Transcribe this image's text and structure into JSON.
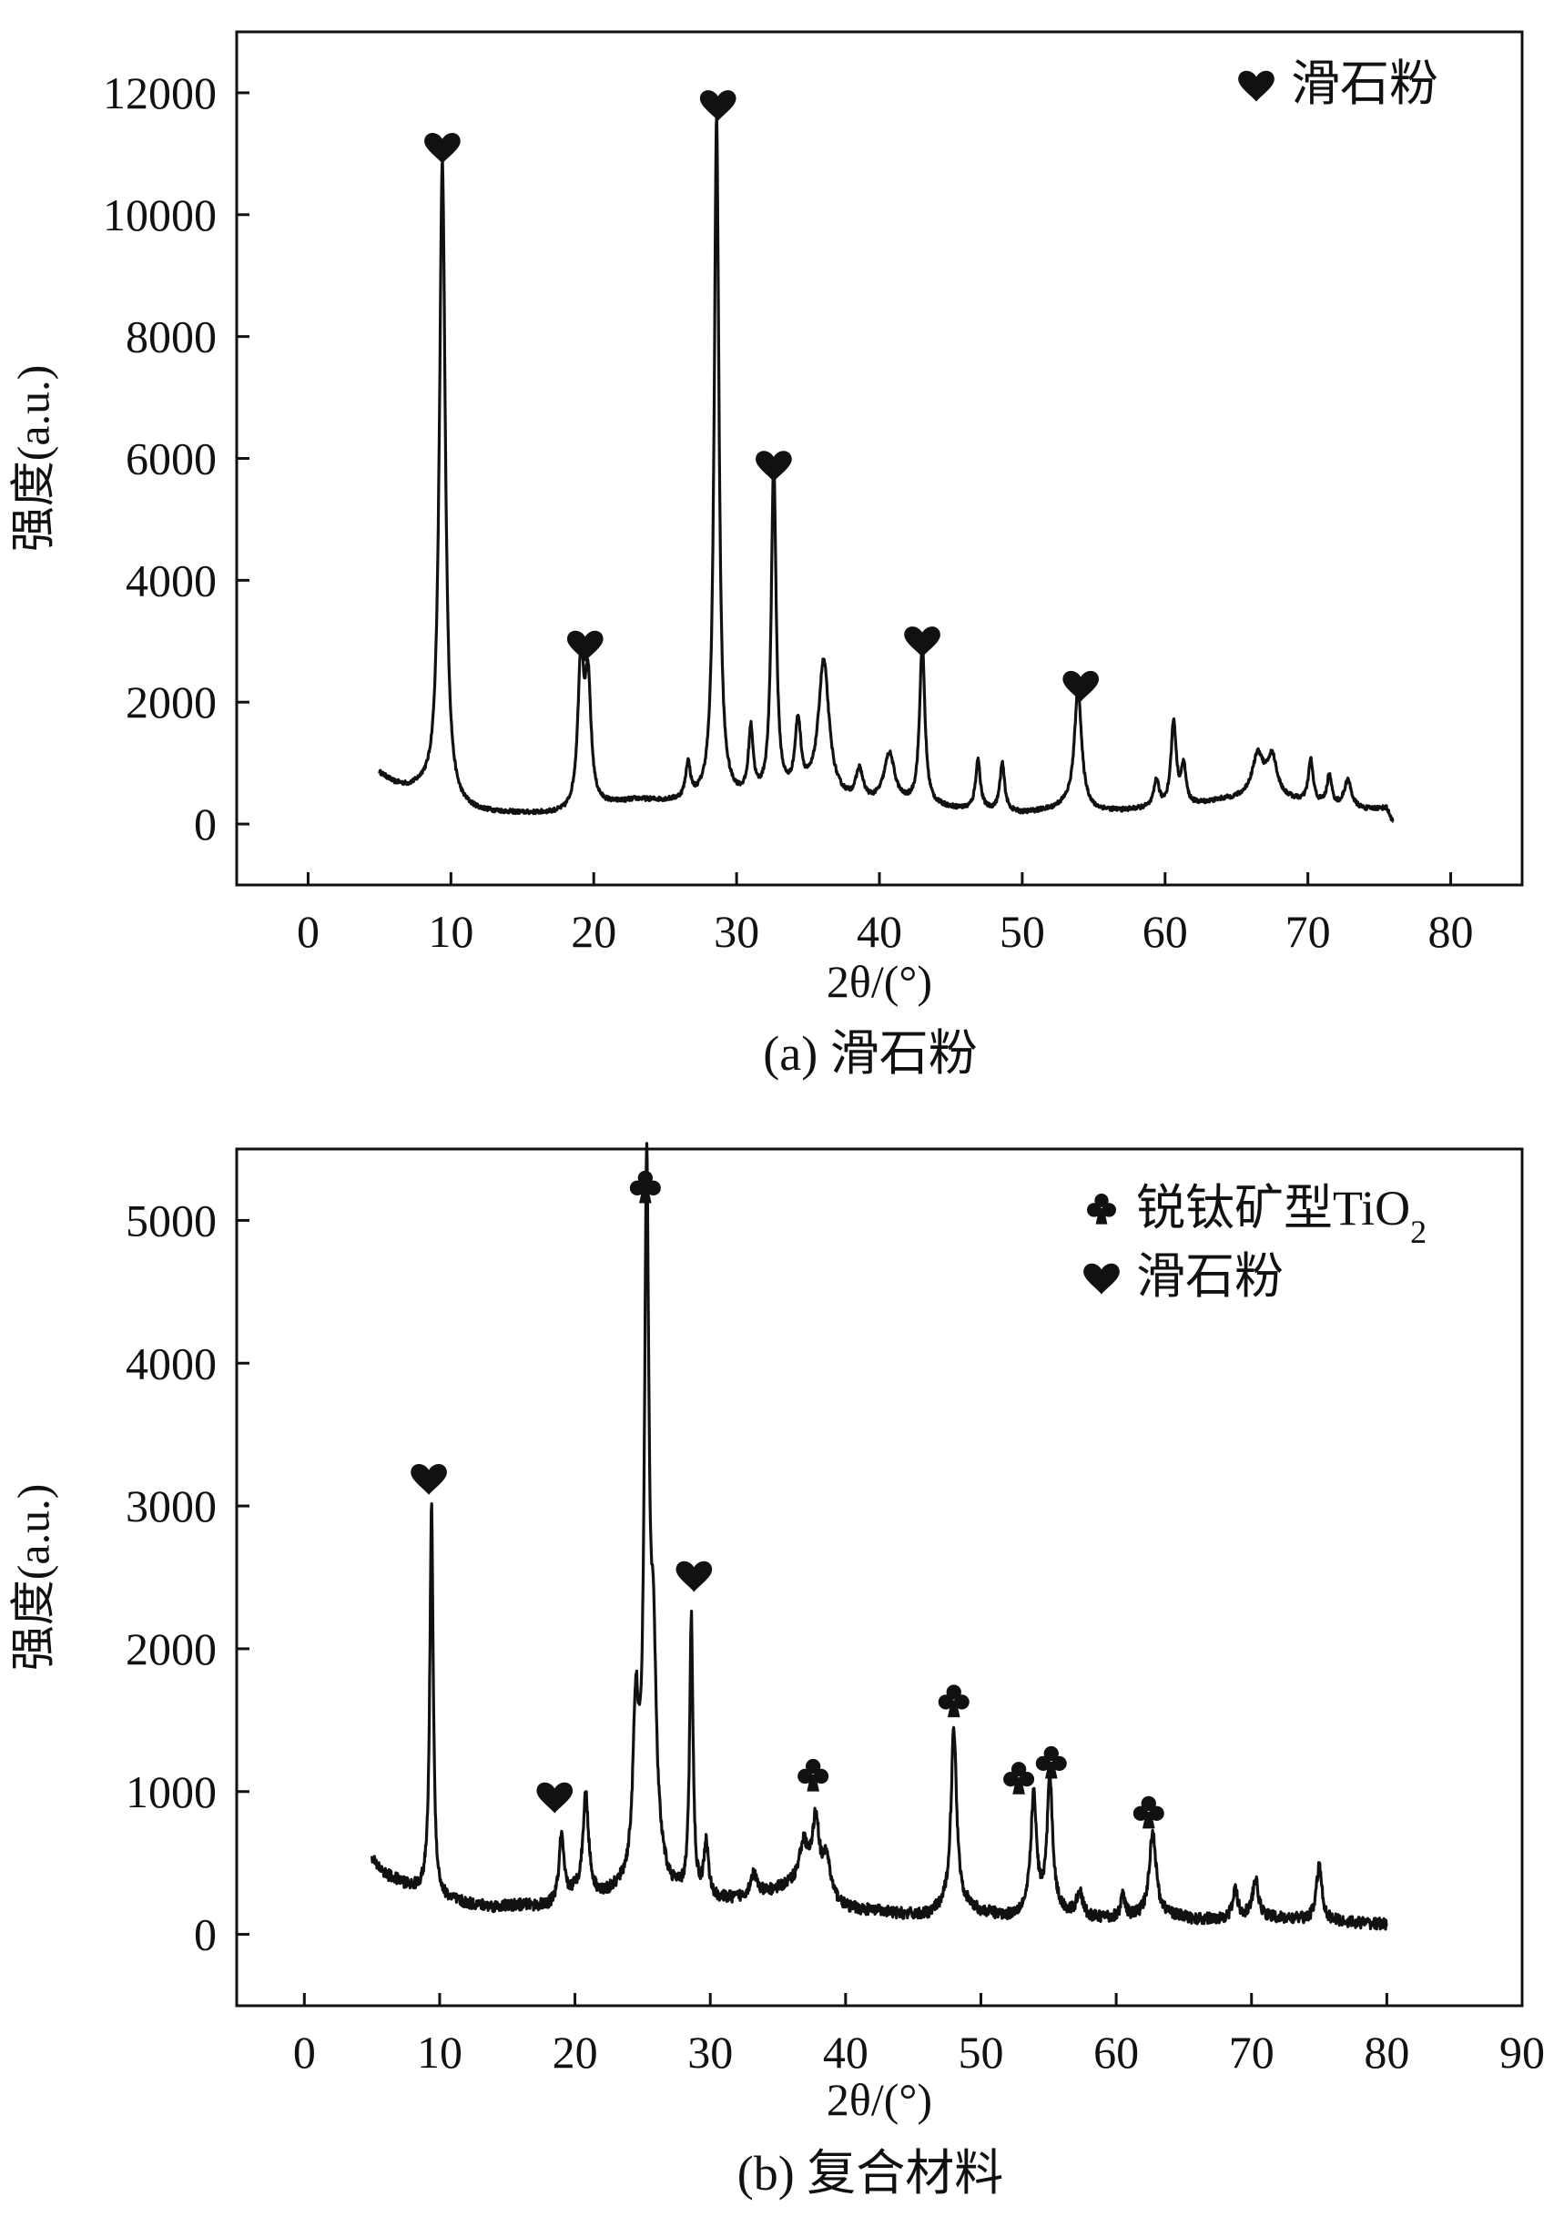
{
  "figure": {
    "captions": [
      "(a) 滑石粉",
      "(b) 复合材料"
    ]
  },
  "colors": {
    "ink": "#111111",
    "background": "#ffffff"
  },
  "chart_data": [
    {
      "type": "line",
      "title": "",
      "caption": "(a) 滑石粉",
      "xlabel": "2θ/(°)",
      "ylabel": "强度(a.u.)",
      "xlim": [
        -5,
        85
      ],
      "ylim": [
        -1000,
        13000
      ],
      "xticks": [
        0,
        10,
        20,
        30,
        40,
        50,
        60,
        70,
        80
      ],
      "yticks": [
        0,
        2000,
        4000,
        6000,
        8000,
        10000,
        12000
      ],
      "grid": false,
      "legend": {
        "placement": "top-right",
        "entries": [
          {
            "symbol": "heart",
            "label": "滑石粉"
          }
        ]
      },
      "baseline": [
        [
          5,
          820
        ],
        [
          6,
          650
        ],
        [
          7,
          560
        ],
        [
          8,
          540
        ],
        [
          9.5,
          300
        ],
        [
          10,
          230
        ],
        [
          12,
          180
        ],
        [
          15,
          160
        ],
        [
          18,
          150
        ],
        [
          21,
          300
        ],
        [
          23,
          380
        ],
        [
          26,
          340
        ],
        [
          28,
          360
        ],
        [
          29.5,
          380
        ],
        [
          31,
          360
        ],
        [
          33,
          400
        ],
        [
          35,
          420
        ],
        [
          38,
          320
        ],
        [
          40,
          300
        ],
        [
          42,
          280
        ],
        [
          44,
          260
        ],
        [
          46,
          220
        ],
        [
          48,
          200
        ],
        [
          50,
          170
        ],
        [
          52,
          230
        ],
        [
          54,
          380
        ],
        [
          55,
          220
        ],
        [
          57,
          210
        ],
        [
          59,
          250
        ],
        [
          60,
          260
        ],
        [
          62,
          300
        ],
        [
          64,
          380
        ],
        [
          66,
          400
        ],
        [
          68,
          400
        ],
        [
          70,
          330
        ],
        [
          72,
          270
        ],
        [
          74,
          230
        ],
        [
          75.5,
          260
        ],
        [
          76,
          10
        ]
      ],
      "peaks": [
        [
          9.4,
          10550,
          0.25
        ],
        [
          19.1,
          2400,
          0.25
        ],
        [
          19.6,
          1950,
          0.25
        ],
        [
          26.6,
          580,
          0.2
        ],
        [
          28.6,
          11200,
          0.2
        ],
        [
          31.0,
          1100,
          0.2
        ],
        [
          32.6,
          5500,
          0.2
        ],
        [
          34.3,
          1150,
          0.25
        ],
        [
          36.1,
          2250,
          0.45
        ],
        [
          38.6,
          500,
          0.3
        ],
        [
          40.7,
          820,
          0.45
        ],
        [
          43.0,
          2650,
          0.22
        ],
        [
          46.9,
          820,
          0.2
        ],
        [
          48.6,
          780,
          0.2
        ],
        [
          53.9,
          1880,
          0.28
        ],
        [
          59.4,
          450,
          0.2
        ],
        [
          60.6,
          1380,
          0.22
        ],
        [
          61.3,
          620,
          0.2
        ],
        [
          66.5,
          700,
          0.5
        ],
        [
          67.5,
          640,
          0.4
        ],
        [
          70.2,
          700,
          0.2
        ],
        [
          71.5,
          480,
          0.2
        ],
        [
          72.8,
          450,
          0.3
        ]
      ],
      "markers": [
        {
          "symbol": "heart",
          "x": 9.4,
          "y": 11100
        },
        {
          "symbol": "heart",
          "x": 19.4,
          "y": 2930
        },
        {
          "symbol": "heart",
          "x": 28.7,
          "y": 11800
        },
        {
          "symbol": "heart",
          "x": 32.6,
          "y": 5880
        },
        {
          "symbol": "heart",
          "x": 43.0,
          "y": 3000
        },
        {
          "symbol": "heart",
          "x": 54.1,
          "y": 2270
        }
      ]
    },
    {
      "type": "line",
      "title": "",
      "caption": "(b) 复合材料",
      "xlabel": "2θ/(°)",
      "ylabel": "强度(a.u.)",
      "xlim": [
        -5,
        90
      ],
      "ylim": [
        -500,
        5500
      ],
      "xticks": [
        0,
        10,
        20,
        30,
        40,
        50,
        60,
        70,
        80,
        90
      ],
      "yticks": [
        0,
        1000,
        2000,
        3000,
        4000,
        5000
      ],
      "grid": false,
      "legend": {
        "placement": "top-right",
        "entries": [
          {
            "symbol": "club",
            "label": "锐钛矿型TiO",
            "subscript": "2"
          },
          {
            "symbol": "heart",
            "label": "滑石粉"
          }
        ]
      },
      "baseline": [
        [
          5,
          520
        ],
        [
          6,
          420
        ],
        [
          7,
          370
        ],
        [
          8,
          320
        ],
        [
          9.3,
          300
        ],
        [
          10,
          250
        ],
        [
          12,
          210
        ],
        [
          14,
          190
        ],
        [
          16,
          200
        ],
        [
          18,
          190
        ],
        [
          20,
          280
        ],
        [
          22,
          250
        ],
        [
          24,
          320
        ],
        [
          25.5,
          500
        ],
        [
          27,
          300
        ],
        [
          28,
          260
        ],
        [
          30,
          230
        ],
        [
          32,
          240
        ],
        [
          34,
          280
        ],
        [
          36,
          330
        ],
        [
          38,
          300
        ],
        [
          40,
          180
        ],
        [
          42,
          160
        ],
        [
          44,
          140
        ],
        [
          46,
          130
        ],
        [
          47.5,
          180
        ],
        [
          48.5,
          200
        ],
        [
          50,
          150
        ],
        [
          52,
          120
        ],
        [
          54,
          160
        ],
        [
          56,
          140
        ],
        [
          58,
          110
        ],
        [
          60,
          110
        ],
        [
          62,
          120
        ],
        [
          64,
          130
        ],
        [
          66,
          100
        ],
        [
          68,
          110
        ],
        [
          70,
          130
        ],
        [
          72,
          110
        ],
        [
          74,
          100
        ],
        [
          76,
          90
        ],
        [
          78,
          80
        ],
        [
          80,
          70
        ]
      ],
      "peaks": [
        [
          9.4,
          2700,
          0.15
        ],
        [
          19.0,
          450,
          0.2
        ],
        [
          20.8,
          700,
          0.25
        ],
        [
          24.5,
          1100,
          0.25
        ],
        [
          25.3,
          4700,
          0.2
        ],
        [
          25.8,
          1300,
          0.25
        ],
        [
          28.6,
          1950,
          0.15
        ],
        [
          29.7,
          380,
          0.2
        ],
        [
          33.2,
          150,
          0.3
        ],
        [
          36.9,
          300,
          0.4
        ],
        [
          37.8,
          480,
          0.3
        ],
        [
          38.6,
          250,
          0.3
        ],
        [
          48.0,
          1250,
          0.25
        ],
        [
          53.9,
          800,
          0.25
        ],
        [
          55.1,
          920,
          0.25
        ],
        [
          57.3,
          180,
          0.25
        ],
        [
          60.5,
          150,
          0.2
        ],
        [
          62.7,
          600,
          0.3
        ],
        [
          68.8,
          200,
          0.2
        ],
        [
          70.3,
          250,
          0.25
        ],
        [
          75.0,
          380,
          0.25
        ]
      ],
      "markers": [
        {
          "symbol": "heart",
          "x": 9.2,
          "y": 3190
        },
        {
          "symbol": "heart",
          "x": 18.5,
          "y": 960
        },
        {
          "symbol": "heart",
          "x": 28.8,
          "y": 2510
        },
        {
          "symbol": "club",
          "x": 25.2,
          "y": 5240
        },
        {
          "symbol": "club",
          "x": 37.6,
          "y": 1120
        },
        {
          "symbol": "club",
          "x": 48.0,
          "y": 1640
        },
        {
          "symbol": "club",
          "x": 52.8,
          "y": 1100
        },
        {
          "symbol": "club",
          "x": 55.2,
          "y": 1210
        },
        {
          "symbol": "club",
          "x": 62.4,
          "y": 860
        }
      ]
    }
  ]
}
